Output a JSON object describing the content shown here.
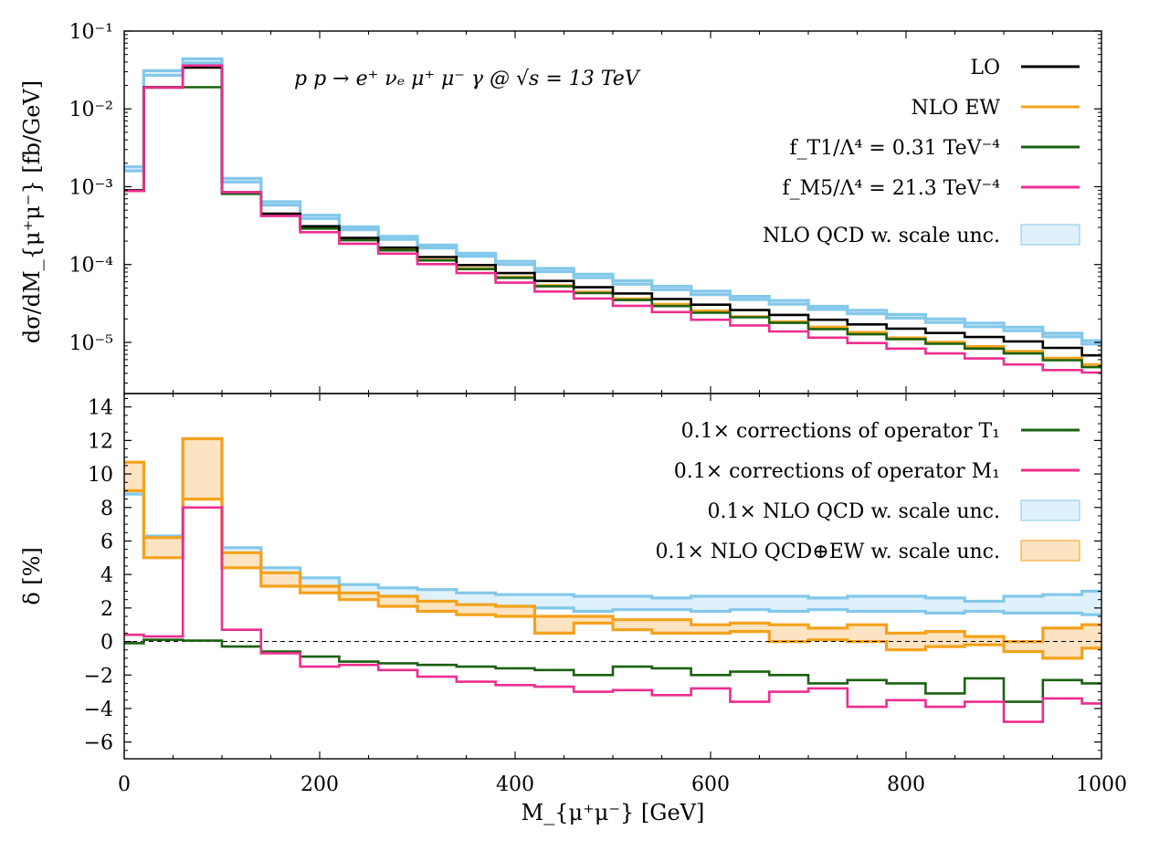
{
  "chart_data": [
    {
      "type": "line",
      "panel": "top",
      "title": "p p → e⁺ νₑ μ⁺ μ⁻ γ @ √s = 13 TeV",
      "ylabel": "dσ/dM_{μ⁺μ⁻} [fb/GeV]",
      "xlabel": "",
      "xlim": [
        0,
        1000
      ],
      "ylim": [
        2.2e-06,
        0.1
      ],
      "yscale": "log",
      "y_ticks": [
        "10⁻¹",
        "10⁻²",
        "10⁻³",
        "10⁻⁴",
        "10⁻⁵"
      ],
      "grid": false,
      "legend": "top-right",
      "bin_edges": [
        0,
        20,
        60,
        100,
        140,
        180,
        220,
        260,
        300,
        340,
        380,
        420,
        460,
        500,
        540,
        580,
        620,
        660,
        700,
        740,
        780,
        820,
        860,
        900,
        940,
        980,
        1000
      ],
      "series": [
        {
          "name": "LO",
          "color": "#000000",
          "values": [
            0.0009,
            0.019,
            0.034,
            0.00085,
            0.00045,
            0.00031,
            0.00022,
            0.000165,
            0.000125,
            9.85e-05,
            7.75e-05,
            6.15e-05,
            5.1e-05,
            4.25e-05,
            3.6e-05,
            3.05e-05,
            2.6e-05,
            2.25e-05,
            1.95e-05,
            1.7e-05,
            1.5e-05,
            1.32e-05,
            1.17e-05,
            1.03e-05,
            8.5e-06,
            6.8e-06
          ]
        },
        {
          "name": "NLO EW",
          "color": "#f4a21c",
          "values": [
            0.0009,
            0.019,
            0.034,
            0.00085,
            0.00045,
            0.00029,
            0.00021,
            0.000155,
            0.000115,
            8.95e-05,
            6.95e-05,
            5.4e-05,
            4.45e-05,
            3.65e-05,
            3.1e-05,
            2.55e-05,
            2.15e-05,
            1.85e-05,
            1.58e-05,
            1.35e-05,
            1.15e-05,
            1.01e-05,
            8.9e-06,
            7.7e-06,
            6.3e-06,
            5.2e-06
          ]
        },
        {
          "name": "f_T1/Λ⁴ = 0.31 TeV⁻⁴",
          "color": "#1a6110",
          "values": [
            0.00088,
            0.0188,
            0.019,
            0.00081,
            0.00043,
            0.00029,
            0.000205,
            0.000152,
            0.000113,
            8.75e-05,
            6.75e-05,
            5.25e-05,
            4.3e-05,
            3.5e-05,
            2.93e-05,
            2.4e-05,
            2.1e-05,
            1.78e-05,
            1.48e-05,
            1.27e-05,
            1.1e-05,
            9.6e-06,
            8.3e-06,
            7.2e-06,
            5.9e-06,
            4.8e-06
          ]
        },
        {
          "name": "f_M5/Λ⁴ = 21.3 TeV⁻⁴",
          "color": "#ee2d8f",
          "values": [
            0.00088,
            0.0188,
            0.036,
            0.00085,
            0.00042,
            0.00026,
            0.000185,
            0.000138,
            0.000101,
            7.75e-05,
            5.85e-05,
            4.5e-05,
            3.65e-05,
            2.95e-05,
            2.45e-05,
            1.95e-05,
            1.65e-05,
            1.38e-05,
            1.15e-05,
            9.8e-06,
            8.3e-06,
            7.2e-06,
            6.2e-06,
            5.2e-06,
            4.4e-06,
            4.1e-06
          ]
        }
      ],
      "band": {
        "name": "NLO QCD w. scale unc.",
        "color": "#83c8ea",
        "fill": "#dff1fa",
        "lower": [
          0.0016,
          0.027,
          0.039,
          0.00115,
          0.00058,
          0.00039,
          0.00028,
          0.00021,
          0.000163,
          0.000128,
          0.0001,
          8.1e-05,
          6.8e-05,
          5.6e-05,
          4.75e-05,
          4.1e-05,
          3.55e-05,
          3.1e-05,
          2.65e-05,
          2.33e-05,
          2.05e-05,
          1.8e-05,
          1.59e-05,
          1.41e-05,
          1.18e-05,
          9.5e-06
        ],
        "upper": [
          0.0018,
          0.031,
          0.044,
          0.00128,
          0.00064,
          0.00043,
          0.000305,
          0.00023,
          0.000178,
          0.00014,
          0.00011,
          8.9e-05,
          7.5e-05,
          6.2e-05,
          5.25e-05,
          4.55e-05,
          3.9e-05,
          3.45e-05,
          2.9e-05,
          2.58e-05,
          2.28e-05,
          2e-05,
          1.77e-05,
          1.57e-05,
          1.31e-05,
          1.05e-05
        ]
      }
    },
    {
      "type": "line",
      "panel": "bottom",
      "xlabel": "M_{μ⁺μ⁻} [GeV]",
      "ylabel": "δ [%]",
      "xlim": [
        0,
        1000
      ],
      "ylim": [
        -7,
        14.8
      ],
      "x_ticks": [
        "0",
        "200",
        "400",
        "600",
        "800",
        "1000"
      ],
      "y_ticks": [
        "14",
        "12",
        "10",
        "8",
        "6",
        "4",
        "2",
        "0",
        "−2",
        "−4",
        "−6"
      ],
      "grid": false,
      "legend": "top-right",
      "reference_line": 0,
      "bin_edges": [
        0,
        20,
        60,
        100,
        140,
        180,
        220,
        260,
        300,
        340,
        380,
        420,
        460,
        500,
        540,
        580,
        620,
        660,
        700,
        740,
        780,
        820,
        860,
        900,
        940,
        980,
        1000
      ],
      "series": [
        {
          "name": "0.1× corrections of operator T₁",
          "color": "#1a6110",
          "values": [
            -0.1,
            0.1,
            0.05,
            -0.3,
            -0.6,
            -0.9,
            -1.2,
            -1.3,
            -1.4,
            -1.5,
            -1.6,
            -1.7,
            -2.0,
            -1.5,
            -1.6,
            -2.0,
            -1.8,
            -2.0,
            -2.5,
            -2.3,
            -2.5,
            -3.1,
            -2.2,
            -3.6,
            -2.3,
            -2.5
          ]
        },
        {
          "name": "0.1× corrections of operator M₁",
          "color": "#ee2d8f",
          "values": [
            0.4,
            0.3,
            8.0,
            0.7,
            -0.7,
            -1.5,
            -1.4,
            -1.7,
            -2.1,
            -2.4,
            -2.6,
            -2.7,
            -3.0,
            -2.9,
            -3.2,
            -2.8,
            -3.6,
            -3.0,
            -2.8,
            -3.9,
            -3.5,
            -3.9,
            -3.6,
            -4.8,
            -3.4,
            -3.7
          ]
        }
      ],
      "bands": [
        {
          "name": "0.1× NLO QCD w. scale unc.",
          "color": "#83c8ea",
          "fill": "#dff1fa",
          "lower": [
            8.8,
            5.1,
            8.6,
            4.6,
            3.7,
            3.2,
            2.8,
            2.6,
            2.3,
            2.2,
            2.1,
            2.0,
            1.8,
            1.9,
            1.9,
            1.8,
            1.9,
            1.8,
            1.9,
            1.8,
            1.8,
            1.7,
            1.8,
            1.7,
            1.7,
            1.6
          ],
          "upper": [
            10.4,
            6.3,
            12.1,
            5.6,
            4.4,
            3.8,
            3.4,
            3.2,
            3.1,
            2.9,
            2.8,
            2.8,
            2.7,
            2.7,
            2.6,
            2.7,
            2.7,
            2.7,
            2.6,
            2.7,
            2.7,
            2.6,
            2.4,
            2.7,
            2.8,
            3.0
          ]
        },
        {
          "name": "0.1× NLO QCD⊕EW w. scale unc.",
          "color": "#f4a21c",
          "fill": "#fce3c2",
          "lower": [
            9.0,
            5.0,
            8.5,
            4.4,
            3.3,
            2.9,
            2.5,
            2.1,
            1.8,
            1.6,
            1.5,
            0.5,
            1.1,
            0.7,
            0.5,
            0.5,
            0.6,
            0.0,
            0.1,
            0.0,
            -0.5,
            -0.3,
            -0.2,
            -0.6,
            -1.0,
            -0.4
          ],
          "upper": [
            10.7,
            6.2,
            12.1,
            5.3,
            4.1,
            3.3,
            2.9,
            2.7,
            2.4,
            2.2,
            2.1,
            1.5,
            1.5,
            1.3,
            1.3,
            1.0,
            1.1,
            1.0,
            0.8,
            1.0,
            0.5,
            0.6,
            0.3,
            0.0,
            0.8,
            1.0
          ]
        }
      ]
    }
  ]
}
